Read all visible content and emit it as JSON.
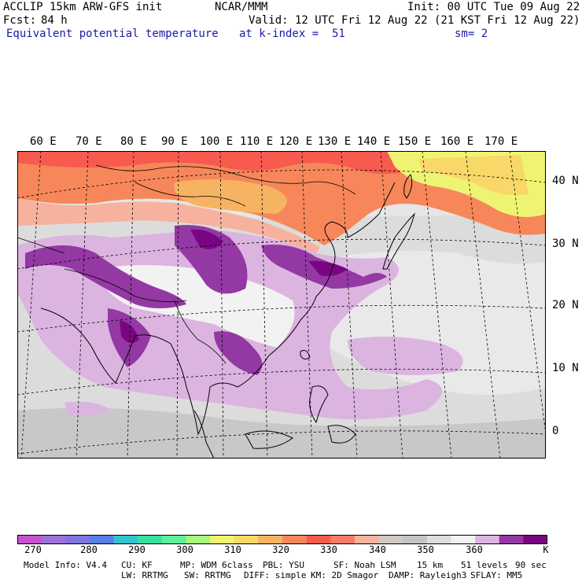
{
  "header": {
    "model": "ACCLIP 15km ARW-GFS init",
    "center": "NCAR/MMM",
    "init": "Init: 00 UTC Tue 09 Aug 22",
    "fcst_label": "Fcst:",
    "fcst_value": "84 h",
    "valid": "Valid: 12 UTC Fri 12 Aug 22 (21 KST Fri 12 Aug 22)",
    "field": "Equivalent potential temperature",
    "level": "at k-index =  51",
    "smooth": "sm= 2"
  },
  "map": {
    "lon_labels": [
      "60 E",
      "70 E",
      "80 E",
      "90 E",
      "100 E",
      "110 E",
      "120 E",
      "130 E",
      "140 E",
      "150 E",
      "160 E",
      "170 E"
    ],
    "lat_labels": [
      "40 N",
      "30 N",
      "20 N",
      "10 N",
      "0"
    ]
  },
  "colorbar": {
    "colors": [
      "#c652d0",
      "#9c72d8",
      "#7e74e2",
      "#5a7ee8",
      "#32c4cc",
      "#36e0a0",
      "#5ef09a",
      "#a6f87e",
      "#eef472",
      "#f8d868",
      "#f6b462",
      "#f7875a",
      "#f75a4e",
      "#f97c66",
      "#f6b29e",
      "#d2c8c0",
      "#c4c4c4",
      "#dedede",
      "#f2f2f2",
      "#dcb4e0",
      "#9438a4",
      "#7a0582"
    ],
    "tick_labels": [
      "270",
      "280",
      "290",
      "300",
      "310",
      "320",
      "330",
      "340",
      "350",
      "360"
    ],
    "unit": "K"
  },
  "model_info": {
    "line1": [
      "Model Info: V4.4",
      "CU: KF",
      "MP: WDM 6class",
      "PBL: YSU",
      "SF: Noah LSM",
      "15 km",
      "51 levels",
      "90 sec"
    ],
    "line2": [
      "LW: RRTMG",
      "SW: RRTMG",
      "DIFF: simple",
      "KM: 2D Smagor",
      "DAMP: Rayleigh3",
      "SFLAY: MM5"
    ]
  }
}
